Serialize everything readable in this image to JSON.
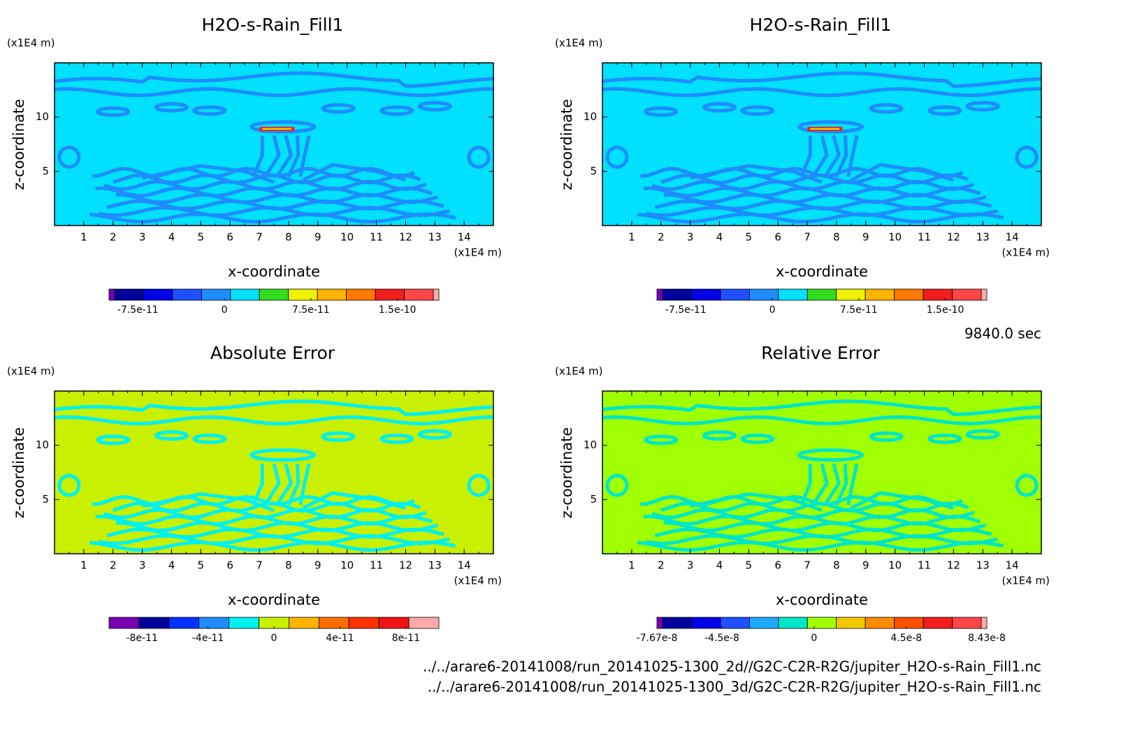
{
  "chart_data": [
    {
      "type": "contour",
      "title": "H2O-s-Rain_Fill1",
      "y_unit": "(x1E4 m)",
      "x_unit": "(x1E4 m)",
      "xlabel": "x-coordinate",
      "ylabel": "z-coordinate",
      "xlim": [
        0,
        15
      ],
      "ylim": [
        0,
        15
      ],
      "xticks": [
        1,
        2,
        3,
        4,
        5,
        6,
        7,
        8,
        9,
        10,
        11,
        12,
        13,
        14
      ],
      "yticks": [
        5,
        10
      ],
      "field_color": "#00e1ff",
      "band_color": "#1e8cff",
      "colorbar": {
        "lim": [
          -1e-10,
          1.86e-10
        ],
        "colors": [
          "#7800b4",
          "#00009b",
          "#0000e6",
          "#1e50ff",
          "#1e8cff",
          "#00e1ff",
          "#32dc1e",
          "#f0f000",
          "#ffb400",
          "#ff7800",
          "#f01e1e",
          "#ff4646",
          "#ffaaaa"
        ],
        "ticks": [
          -7.5e-11,
          0,
          7.5e-11,
          1.5e-10
        ]
      }
    },
    {
      "type": "contour",
      "title": "H2O-s-Rain_Fill1",
      "y_unit": "(x1E4 m)",
      "x_unit": "(x1E4 m)",
      "xlabel": "x-coordinate",
      "ylabel": "z-coordinate",
      "xlim": [
        0,
        15
      ],
      "ylim": [
        0,
        15
      ],
      "xticks": [
        1,
        2,
        3,
        4,
        5,
        6,
        7,
        8,
        9,
        10,
        11,
        12,
        13,
        14
      ],
      "yticks": [
        5,
        10
      ],
      "field_color": "#00e1ff",
      "band_color": "#1e8cff",
      "colorbar": {
        "lim": [
          -1e-10,
          1.86e-10
        ],
        "colors": [
          "#7800b4",
          "#00009b",
          "#0000e6",
          "#1e50ff",
          "#1e8cff",
          "#00e1ff",
          "#32dc1e",
          "#f0f000",
          "#ffb400",
          "#ff7800",
          "#f01e1e",
          "#ff4646",
          "#ffaaaa"
        ],
        "ticks": [
          -7.5e-11,
          0,
          7.5e-11,
          1.5e-10
        ]
      }
    },
    {
      "type": "contour",
      "title": "Absolute Error",
      "y_unit": "(x1E4 m)",
      "x_unit": "(x1E4 m)",
      "xlabel": "x-coordinate",
      "ylabel": "z-coordinate",
      "xlim": [
        0,
        15
      ],
      "ylim": [
        0,
        15
      ],
      "xticks": [
        1,
        2,
        3,
        4,
        5,
        6,
        7,
        8,
        9,
        10,
        11,
        12,
        13,
        14
      ],
      "yticks": [
        5,
        10
      ],
      "field_color": "#c8f000",
      "band_color": "#00f0f0",
      "colorbar": {
        "lim": [
          -1e-10,
          1e-10
        ],
        "colors": [
          "#7800b4",
          "#00009b",
          "#0032ff",
          "#1e8cff",
          "#00f0f0",
          "#c8f000",
          "#ffb400",
          "#ff6e00",
          "#ff3200",
          "#f01414",
          "#ffaaaa"
        ],
        "ticks": [
          -8e-11,
          -4e-11,
          0,
          4e-11,
          8e-11
        ]
      }
    },
    {
      "type": "contour",
      "title": "Relative Error",
      "y_unit": "(x1E4 m)",
      "x_unit": "(x1E4 m)",
      "xlabel": "x-coordinate",
      "ylabel": "z-coordinate",
      "xlim": [
        0,
        15
      ],
      "ylim": [
        0,
        15
      ],
      "xticks": [
        1,
        2,
        3,
        4,
        5,
        6,
        7,
        8,
        9,
        10,
        11,
        12,
        13,
        14
      ],
      "yticks": [
        5,
        10
      ],
      "field_color": "#a0ff00",
      "band_color": "#00e6c8",
      "colorbar": {
        "lim": [
          -7.67e-08,
          8.43e-08
        ],
        "colors": [
          "#7800b4",
          "#00009b",
          "#0000e6",
          "#1e50ff",
          "#1eaaff",
          "#00e6c8",
          "#a0ff00",
          "#f0c800",
          "#ff8c00",
          "#ff5000",
          "#f01e1e",
          "#ff4646",
          "#ffaaaa"
        ],
        "ticks": [
          -7.67e-08,
          -4.5e-08,
          0,
          4.5e-08,
          8.43e-08
        ]
      }
    }
  ],
  "time": "9840.0 sec",
  "files": [
    "../../arare6-20141008/run_20141025-1300_2d//G2C-C2R-R2G/jupiter_H2O-s-Rain_Fill1.nc",
    "../../arare6-20141008/run_20141025-1300_3d/G2C-C2R-R2G/jupiter_H2O-s-Rain_Fill1.nc"
  ]
}
